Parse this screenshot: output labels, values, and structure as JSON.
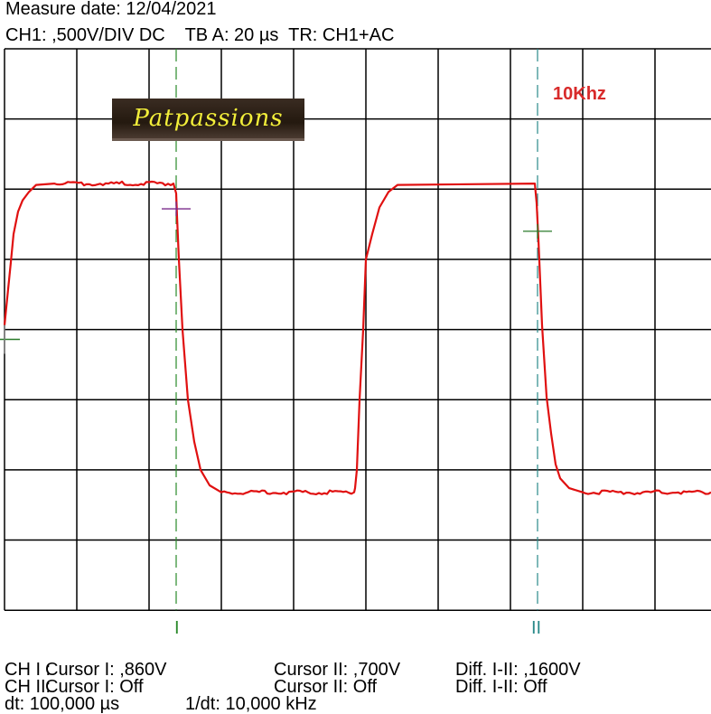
{
  "header": {
    "measure_date": "Measure date: 12/04/2021",
    "settings": "CH1: ,500V/DIV DC    TB A: 20 µs  TR: CH1+AC"
  },
  "logo_text": "Patpassions",
  "frequency_label": "10Khz",
  "cursor_labels": {
    "cursor1": "I",
    "cursor2": "II"
  },
  "readout": {
    "ch1_label": "CH I :",
    "ch1_cursor1": "Cursor I: ,860V",
    "ch1_cursor2": "Cursor II: ,700V",
    "ch1_diff": "Diff. I-II: ,1600V",
    "ch2_label": "CH II:",
    "ch2_cursor1": "Cursor I: Off",
    "ch2_cursor2": "Cursor II: Off",
    "ch2_diff": "Diff. I-II: Off",
    "dt": "dt: 100,000 µs",
    "inv_dt": "1/dt: 10,000 kHz"
  },
  "colors": {
    "trace": "#e01010",
    "grid": "#000000",
    "cursor1": "#2a8a2a",
    "cursor2": "#2a8a8a",
    "marker1": "#7a2a8a",
    "marker2": "#2a7a2a",
    "frequency_label": "#d82a2a"
  },
  "chart_data": {
    "type": "line",
    "title": "",
    "xlabel": "",
    "ylabel": "",
    "x_units": "µs",
    "y_units": "V",
    "time_per_div": 20,
    "volts_per_div": 0.5,
    "xlim": [
      0,
      200
    ],
    "ylim": [
      -2,
      2
    ],
    "grid": true,
    "divisions": {
      "x": 10,
      "y": 8
    },
    "series": [
      {
        "x": [
          0,
          0.5,
          1.75,
          2.5,
          3.75,
          5,
          6.75,
          8.75,
          13.75,
          46.75,
          47.5,
          47.75,
          48.25,
          49.25,
          50.75,
          52.5,
          54.25,
          56.75,
          60,
          96.75,
          97,
          97.5,
          98.25,
          99.25,
          100,
          101.75,
          103.75,
          106.25,
          108.75,
          146.75,
          147.25,
          147.75,
          148.75,
          150,
          151.25,
          152.5,
          153.75,
          156.25,
          160,
          195.5
        ],
        "y": [
          0.03,
          0.16,
          0.48,
          0.68,
          0.84,
          0.92,
          0.98,
          1.03,
          1.04,
          1.04,
          0.97,
          0.8,
          0.5,
          0,
          -0.5,
          -0.8,
          -1.0,
          -1.11,
          -1.16,
          -1.16,
          -1.13,
          -1.0,
          -0.5,
          0,
          0.5,
          0.68,
          0.87,
          0.98,
          1.03,
          1.04,
          0.9,
          0.64,
          0.03,
          -0.48,
          -0.74,
          -0.96,
          -1.06,
          -1.13,
          -1.16,
          -1.16
        ]
      }
    ],
    "cursors": [
      {
        "label": "I",
        "x": 47.5,
        "marker_y": 0.86
      },
      {
        "label": "II",
        "x": 147.5,
        "marker_y": 0.7
      }
    ],
    "trigger_marker": {
      "x": 0,
      "y": -0.07
    }
  }
}
